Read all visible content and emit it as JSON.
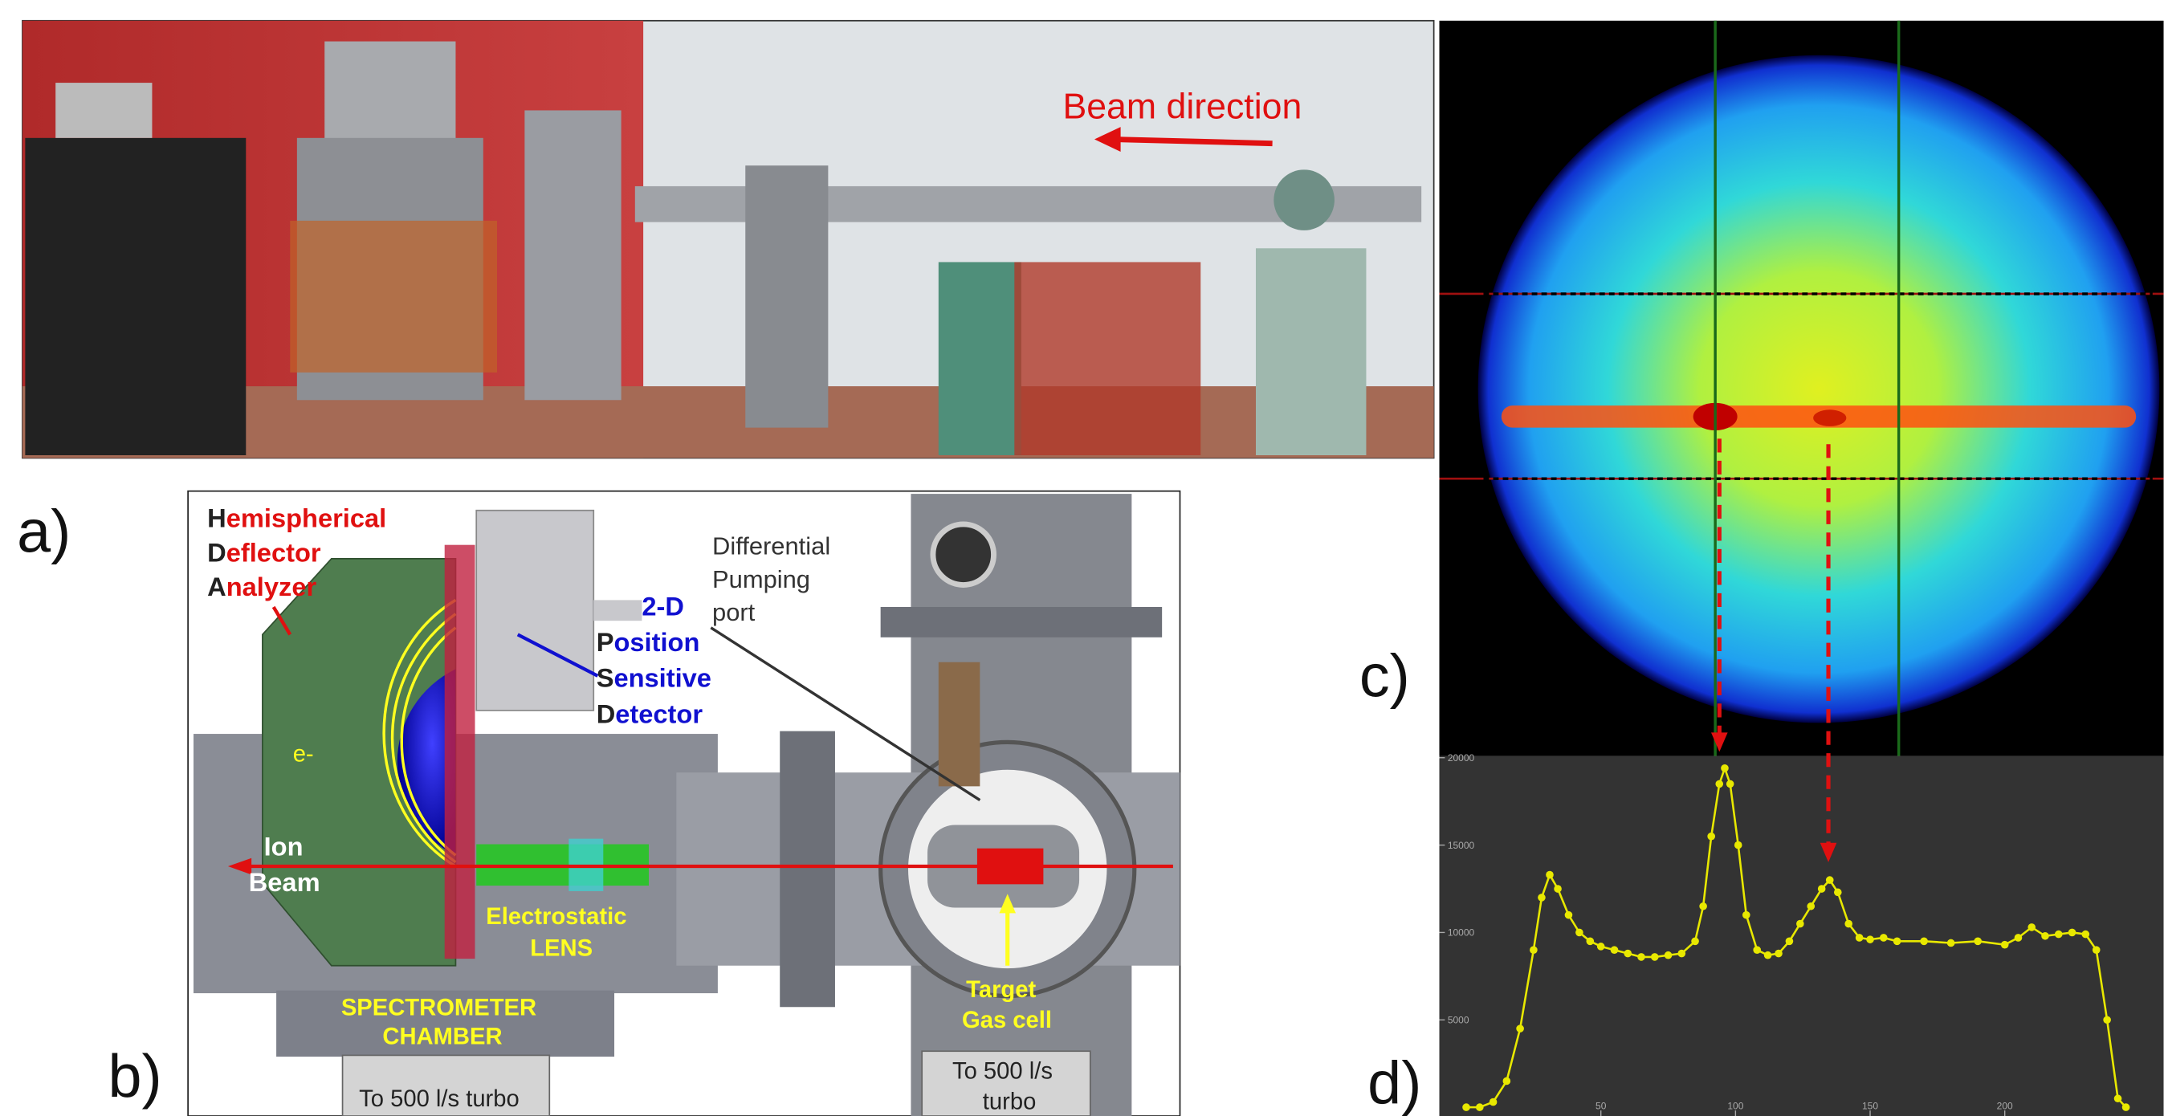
{
  "panels": {
    "a": "a)",
    "b": "b)",
    "c": "c)",
    "d": "d)"
  },
  "photo": {
    "annotation": "Beam direction"
  },
  "diagram": {
    "hda": [
      "Hemispherical",
      "Deflector",
      "Analyzer"
    ],
    "psd": [
      "2-D",
      "Position",
      "Sensitive",
      "Detector"
    ],
    "pumping": [
      "Differential",
      "Pumping",
      "port"
    ],
    "electron": "e-",
    "ion_beam": [
      "Ion",
      "Beam"
    ],
    "lens": [
      "Electrostatic",
      "LENS"
    ],
    "chamber": [
      "SPECTROMETER",
      "CHAMBER"
    ],
    "target": [
      "Target",
      "Gas cell"
    ],
    "turbo_left": "To 500 l/s turbo",
    "turbo_right": [
      "To 500 l/s",
      "turbo"
    ]
  },
  "chart_data": {
    "type": "line",
    "x": [
      0,
      5,
      10,
      15,
      20,
      25,
      28,
      31,
      34,
      38,
      42,
      46,
      50,
      55,
      60,
      65,
      70,
      75,
      80,
      85,
      88,
      91,
      94,
      96,
      98,
      101,
      104,
      108,
      112,
      116,
      120,
      124,
      128,
      132,
      135,
      138,
      142,
      146,
      150,
      155,
      160,
      170,
      180,
      190,
      200,
      205,
      210,
      215,
      220,
      225,
      230,
      234,
      238,
      242,
      245
    ],
    "series": [
      {
        "color": "#e8e800",
        "values": [
          0,
          0,
          300,
          1500,
          4500,
          9000,
          12000,
          13300,
          12500,
          11000,
          10000,
          9500,
          9200,
          9000,
          8800,
          8600,
          8600,
          8700,
          8800,
          9500,
          11500,
          15500,
          18500,
          19400,
          18500,
          15000,
          11000,
          9000,
          8700,
          8800,
          9500,
          10500,
          11500,
          12500,
          13000,
          12300,
          10500,
          9700,
          9600,
          9700,
          9500,
          9500,
          9400,
          9500,
          9300,
          9700,
          10300,
          9800,
          9900,
          10000,
          9900,
          9000,
          5000,
          500,
          0
        ]
      }
    ],
    "xlim": [
      -10,
      259
    ],
    "ylim": [
      -500,
      20100
    ],
    "xticks": [
      50,
      100,
      150,
      200
    ],
    "yticks": [
      5000,
      10000,
      15000,
      20000
    ]
  }
}
